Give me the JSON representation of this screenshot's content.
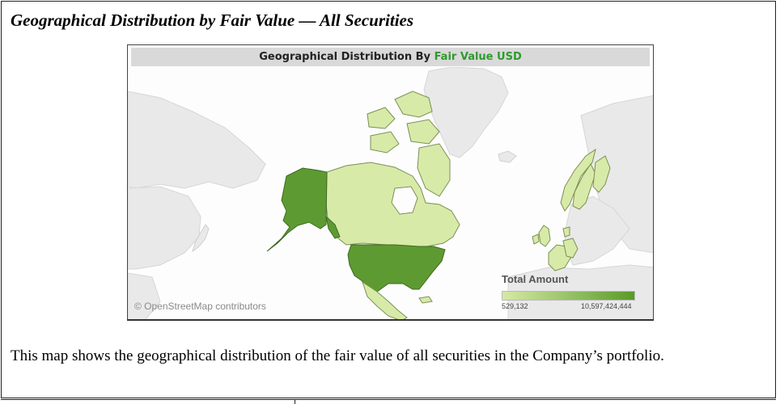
{
  "heading": "Geographical Distribution by Fair Value — All Securities",
  "map": {
    "title_prefix": "Geographical Distribution By ",
    "title_measure": "Fair Value USD",
    "attribution": "© OpenStreetMap contributors",
    "legend": {
      "title": "Total Amount",
      "min_label": "529,132",
      "max_label": "10,597,424,444",
      "color_low": "#d6e9a6",
      "color_high": "#5a9a2a"
    },
    "colors": {
      "high_value": "#5e9a32",
      "low_value": "#d8eaa8",
      "no_data": "#e9e9e9",
      "water": "#fdfdfd",
      "title_accent": "#2e9a2e"
    }
  },
  "caption": "This map shows the geographical distribution of the fair value of all securities in the Company’s portfolio."
}
